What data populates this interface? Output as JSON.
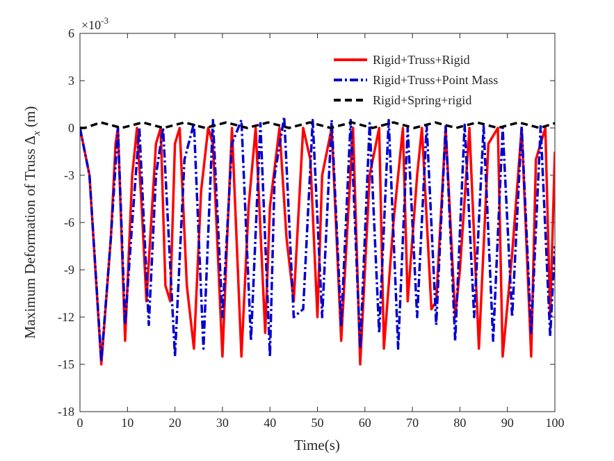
{
  "chart_data": {
    "type": "line",
    "title": "",
    "xlabel": "Time(s)",
    "ylabel_main": "Maximum Deformation of Truss Δ",
    "ylabel_sub": "x",
    "ylabel_unit": " (m)",
    "y_exponent_label": "×10",
    "y_exponent_power": "-3",
    "xlim": [
      0,
      100
    ],
    "ylim": [
      -18,
      6
    ],
    "xticks": [
      0,
      10,
      20,
      30,
      40,
      50,
      60,
      70,
      80,
      90,
      100
    ],
    "xtick_labels": [
      "0",
      "10",
      "20",
      "30",
      "40",
      "50",
      "60",
      "70",
      "80",
      "90",
      "100"
    ],
    "yticks": [
      6,
      3,
      0,
      -3,
      -6,
      -9,
      -12,
      -15,
      -18
    ],
    "ytick_labels": [
      "6",
      "3",
      "0",
      "-3",
      "-6",
      "-9",
      "-12",
      "-15",
      "-18"
    ],
    "grid": false,
    "legend_position": "top-right",
    "series": [
      {
        "name": "Rigid+Truss+Rigid",
        "color": "#ff0000",
        "dash": "solid",
        "x": [
          0,
          2,
          4.5,
          6.5,
          7.5,
          8,
          9.5,
          11,
          12,
          13,
          14,
          15,
          16,
          17,
          18,
          19,
          20,
          21,
          22.5,
          24,
          25.5,
          27,
          28,
          30,
          31,
          32,
          34,
          35.5,
          37,
          39,
          40,
          42,
          43.5,
          45,
          47,
          48.5,
          50,
          51,
          53,
          55,
          56,
          57.5,
          59,
          61,
          63,
          64,
          66,
          68,
          69,
          71,
          72,
          74,
          75,
          77,
          79,
          80,
          82,
          84,
          86,
          88,
          89,
          91,
          93,
          95,
          96,
          98,
          99,
          100
        ],
        "y": [
          0,
          -3,
          -15,
          -7,
          -1,
          0,
          -13.5,
          -3,
          0,
          -5,
          -11,
          -6,
          -1,
          0,
          -10,
          -11,
          -1,
          0,
          -10,
          -14,
          -4,
          0,
          -1,
          -14.5,
          -7,
          0,
          -14.5,
          -5,
          0,
          -13,
          -5,
          0,
          -7,
          -11,
          0,
          -2,
          -12,
          -3,
          0,
          -13.5,
          -8,
          0,
          -15,
          -3,
          0,
          -14,
          -6,
          0,
          -11,
          -3,
          0,
          -11.5,
          -11,
          0,
          -12,
          -9,
          0,
          -14,
          -1,
          0,
          -14.5,
          -8,
          0,
          -14.5,
          -2,
          0,
          -12,
          -1.5
        ]
      },
      {
        "name": "Rigid+Truss+Point Mass",
        "color": "#0000cc",
        "dash": "dashdot",
        "x": [
          0,
          2,
          4.5,
          6.5,
          8,
          9.5,
          11,
          12.5,
          14.5,
          16,
          17.5,
          20,
          22,
          24,
          26,
          28,
          30,
          32,
          34,
          36,
          38,
          40,
          41,
          43,
          45,
          47,
          49,
          51,
          53,
          55,
          57,
          59,
          61,
          63,
          65,
          67,
          69,
          71,
          73,
          75,
          77,
          79,
          81,
          83,
          85,
          87,
          89,
          91,
          93,
          95,
          97,
          99,
          100
        ],
        "y": [
          0,
          -3,
          -14.8,
          -7,
          0,
          -12.5,
          -6,
          0,
          -12.5,
          -3,
          0,
          -14.5,
          -2,
          0.3,
          -14,
          0.5,
          -12,
          -1,
          0.5,
          -13.5,
          0.3,
          -14.5,
          -3,
          0.7,
          -12,
          -11.5,
          0.5,
          -12,
          0.5,
          -12.5,
          0.5,
          -14,
          0.3,
          -13,
          0.5,
          -14,
          0,
          -12,
          0.2,
          -12.5,
          0.1,
          -13.5,
          0.2,
          -12,
          0.1,
          -13.5,
          0,
          -12,
          0.1,
          -13,
          0.1,
          -13.2,
          -7.5
        ]
      },
      {
        "name": "Rigid+Spring+rigid",
        "color": "#000000",
        "dash": "dashed",
        "x": [
          0,
          1,
          4.4,
          8.8,
          13.2,
          17.6,
          22,
          26.4,
          30.8,
          35.2,
          39.6,
          44,
          48.4,
          52.8,
          57.2,
          61.6,
          66,
          70.4,
          74.8,
          79.2,
          83.6,
          88,
          92.4,
          96.8,
          100
        ],
        "y": [
          0,
          0,
          0.35,
          0,
          0.35,
          0,
          0.35,
          0,
          0.35,
          0,
          0.35,
          0,
          0.35,
          0,
          0.35,
          0,
          0.35,
          0,
          0.35,
          0,
          0.35,
          0,
          0.35,
          0,
          0.3
        ]
      }
    ]
  }
}
